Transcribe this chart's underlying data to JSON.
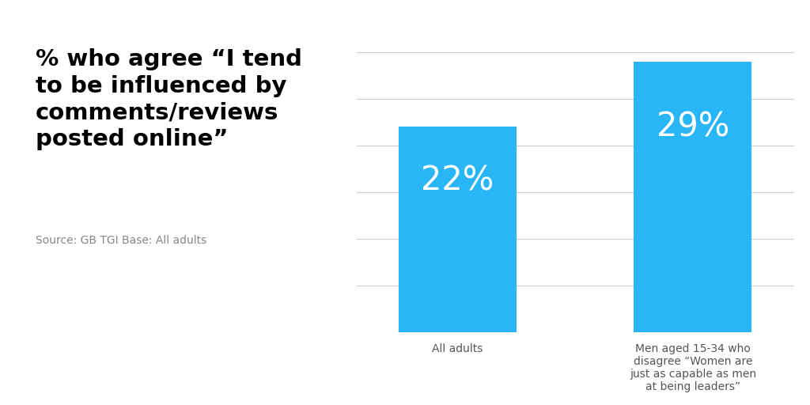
{
  "categories": [
    "All adults",
    "Men aged 15-34 who\ndisagree “Women are\njust as capable as men\nat being leaders”"
  ],
  "values": [
    22,
    29
  ],
  "bar_color": "#29B6F6",
  "bar_labels": [
    "22%",
    "29%"
  ],
  "title_lines": [
    "% who agree “I tend",
    "to be influenced by",
    "comments/reviews",
    "posted online”"
  ],
  "source_text": "Source: GB TGI Base: All adults",
  "background_color": "#ffffff",
  "label_color": "#ffffff",
  "tick_label_color": "#555555",
  "title_color": "#000000",
  "source_color": "#888888",
  "ylim": [
    0,
    33
  ],
  "yticks": [
    5,
    10,
    15,
    20,
    25,
    30
  ],
  "grid_color": "#cccccc",
  "title_fontsize": 21,
  "source_fontsize": 10,
  "bar_label_fontsize": 30,
  "tick_label_fontsize": 10,
  "bar_width": 0.7,
  "bar_positions": [
    0.0,
    1.4
  ]
}
